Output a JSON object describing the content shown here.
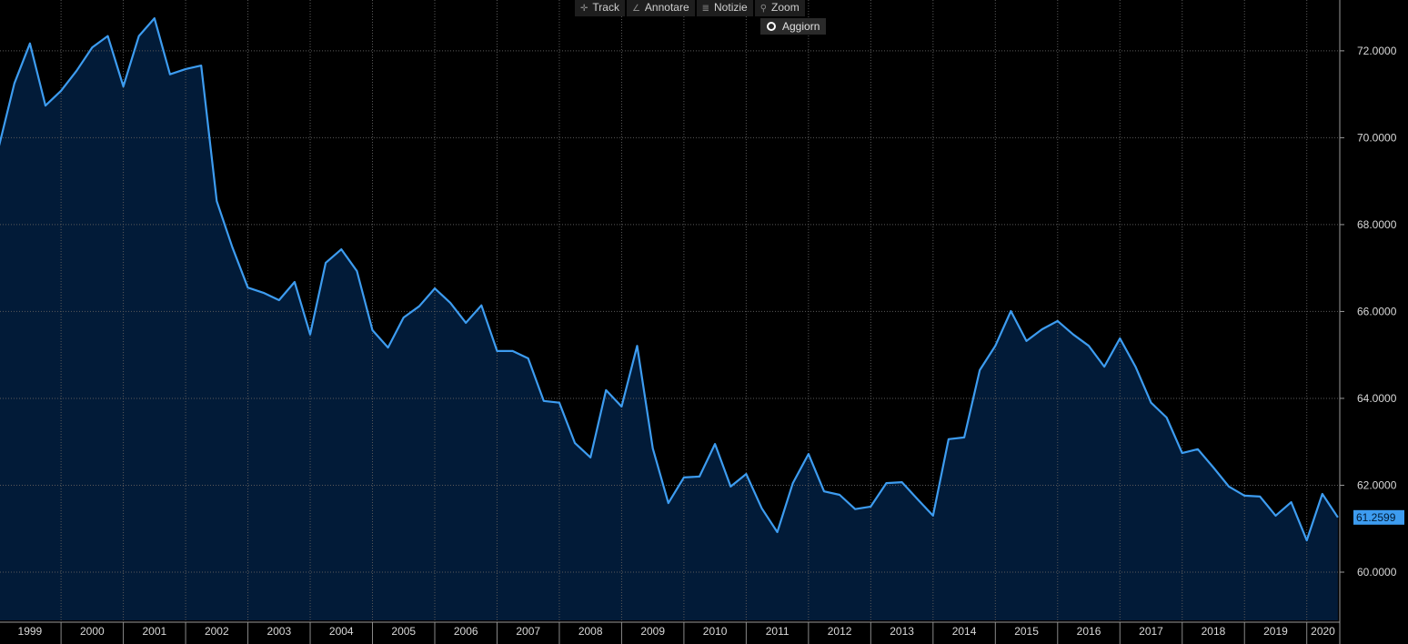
{
  "toolbar": {
    "buttons": [
      "Track",
      "Annotare",
      "Notizie",
      "Zoom"
    ],
    "refresh": "Aggiorn"
  },
  "chart_data": {
    "type": "area",
    "x": [
      1999,
      1999.25,
      1999.5,
      1999.75,
      2000,
      2000.25,
      2000.5,
      2000.75,
      2001,
      2001.25,
      2001.5,
      2001.75,
      2002,
      2002.25,
      2002.5,
      2002.75,
      2003,
      2003.25,
      2003.5,
      2003.75,
      2004,
      2004.25,
      2004.5,
      2004.75,
      2005,
      2005.25,
      2005.5,
      2005.75,
      2006,
      2006.25,
      2006.5,
      2006.75,
      2007,
      2007.25,
      2007.5,
      2007.75,
      2008,
      2008.25,
      2008.5,
      2008.75,
      2009,
      2009.25,
      2009.5,
      2009.75,
      2010,
      2010.25,
      2010.5,
      2010.75,
      2011,
      2011.25,
      2011.5,
      2011.75,
      2012,
      2012.25,
      2012.5,
      2012.75,
      2013,
      2013.25,
      2013.5,
      2013.75,
      2014,
      2014.25,
      2014.5,
      2014.75,
      2015,
      2015.25,
      2015.5,
      2015.75,
      2016,
      2016.25,
      2016.5,
      2016.75,
      2017,
      2017.25,
      2017.5,
      2017.75,
      2018,
      2018.25,
      2018.5,
      2018.75,
      2019,
      2019.25,
      2019.5,
      2019.75,
      2020,
      2020.25,
      2020.5
    ],
    "series": [
      {
        "color": "#3d9cf0",
        "fill": "#021b38",
        "values": [
          69.78,
          71.25,
          72.17,
          70.74,
          71.08,
          71.54,
          72.08,
          72.34,
          71.18,
          72.34,
          72.75,
          71.46,
          71.58,
          71.66,
          68.54,
          67.48,
          66.55,
          66.43,
          66.26,
          66.68,
          65.47,
          67.12,
          67.43,
          66.93,
          65.57,
          65.17,
          65.86,
          66.12,
          66.53,
          66.2,
          65.74,
          66.14,
          65.09,
          65.09,
          64.92,
          63.94,
          63.9,
          62.97,
          62.64,
          64.19,
          63.81,
          65.21,
          62.85,
          61.59,
          62.18,
          62.2,
          62.95,
          61.97,
          62.26,
          61.47,
          60.92,
          62.05,
          62.72,
          61.86,
          61.78,
          61.45,
          61.51,
          62.05,
          62.07,
          61.68,
          61.3,
          63.06,
          63.1,
          64.65,
          65.21,
          66.01,
          65.32,
          65.59,
          65.78,
          65.47,
          65.21,
          64.73,
          65.38,
          64.73,
          63.9,
          63.56,
          62.74,
          62.83,
          62.41,
          61.97,
          61.76,
          61.74,
          61.3,
          61.61,
          60.73,
          61.8,
          61.2599
        ]
      }
    ],
    "xlim": [
      1999.02,
      2020.53
    ],
    "xticks": [
      {
        "value": 1999.5,
        "label": "1999"
      },
      {
        "value": 2000.5,
        "label": "2000"
      },
      {
        "value": 2001.5,
        "label": "2001"
      },
      {
        "value": 2002.5,
        "label": "2002"
      },
      {
        "value": 2003.5,
        "label": "2003"
      },
      {
        "value": 2004.5,
        "label": "2004"
      },
      {
        "value": 2005.5,
        "label": "2005"
      },
      {
        "value": 2006.5,
        "label": "2006"
      },
      {
        "value": 2007.5,
        "label": "2007"
      },
      {
        "value": 2008.5,
        "label": "2008"
      },
      {
        "value": 2009.5,
        "label": "2009"
      },
      {
        "value": 2010.5,
        "label": "2010"
      },
      {
        "value": 2011.5,
        "label": "2011"
      },
      {
        "value": 2012.5,
        "label": "2012"
      },
      {
        "value": 2013.5,
        "label": "2013"
      },
      {
        "value": 2014.5,
        "label": "2014"
      },
      {
        "value": 2015.5,
        "label": "2015"
      },
      {
        "value": 2016.5,
        "label": "2016"
      },
      {
        "value": 2017.5,
        "label": "2017"
      },
      {
        "value": 2018.5,
        "label": "2018"
      },
      {
        "value": 2019.5,
        "label": "2019"
      },
      {
        "value": 2020.26,
        "label": "2020"
      }
    ],
    "xgrid": [
      2000,
      2001,
      2002,
      2003,
      2004,
      2005,
      2006,
      2007,
      2008,
      2009,
      2010,
      2011,
      2012,
      2013,
      2014,
      2015,
      2016,
      2017,
      2018,
      2019,
      2020
    ],
    "ylim": [
      58.89,
      73.17
    ],
    "yticks": [
      {
        "value": 60,
        "label": "60.0000"
      },
      {
        "value": 62,
        "label": "62.0000"
      },
      {
        "value": 64,
        "label": "64.0000"
      },
      {
        "value": 66,
        "label": "66.0000"
      },
      {
        "value": 68,
        "label": "68.0000"
      },
      {
        "value": 70,
        "label": "70.0000"
      },
      {
        "value": 72,
        "label": "72.0000"
      }
    ],
    "grid": true,
    "y_axis_side": "right"
  }
}
